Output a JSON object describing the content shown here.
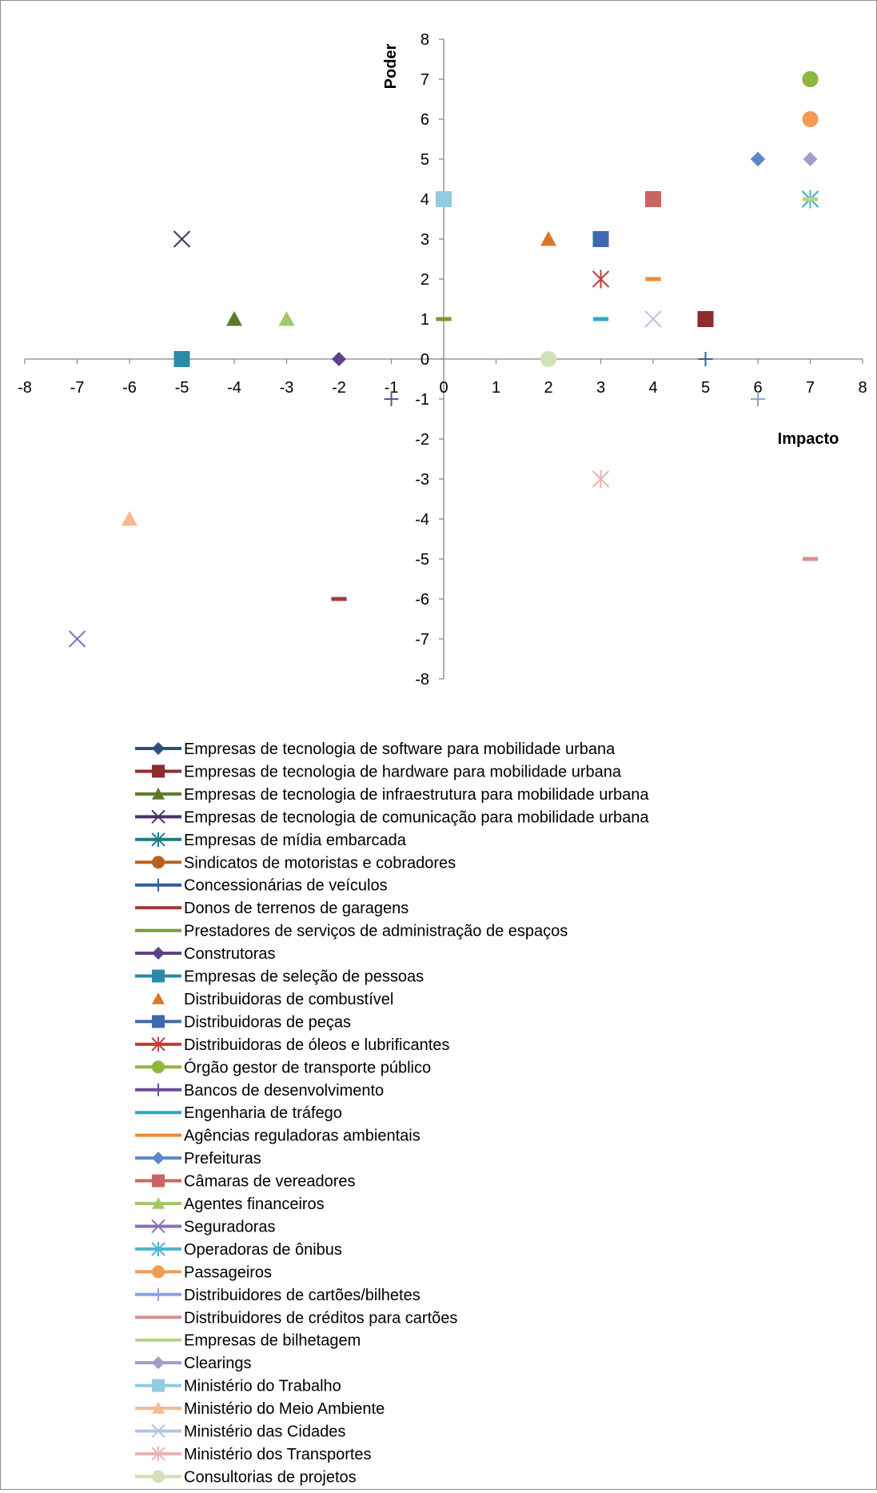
{
  "chart_data": {
    "type": "scatter",
    "title": "",
    "xlabel": "Impacto",
    "ylabel": "Poder",
    "xlim": [
      -8,
      8
    ],
    "ylim": [
      -8,
      8
    ],
    "x_ticks": [
      "-8",
      "-7",
      "-6",
      "-5",
      "-4",
      "-3",
      "-2",
      "-1",
      "0",
      "1",
      "2",
      "3",
      "4",
      "5",
      "6",
      "7",
      "8"
    ],
    "y_ticks": [
      "8",
      "7",
      "6",
      "5",
      "4",
      "3",
      "2",
      "1",
      "0",
      "-1",
      "-2",
      "-3",
      "-4",
      "-5",
      "-6",
      "-7",
      "-8"
    ],
    "grid": false,
    "legend_position": "bottom",
    "series": [
      {
        "name": "Empresas de tecnologia de software para mobilidade urbana",
        "marker": "diamond",
        "color": "#2e4f7c",
        "points": [
          [
            6,
            5
          ]
        ]
      },
      {
        "name": "Empresas de tecnologia de hardware para mobilidade urbana",
        "marker": "square",
        "color": "#8e2b2b",
        "points": [
          [
            5,
            1
          ]
        ]
      },
      {
        "name": "Empresas de tecnologia de infraestrutura para mobilidade urbana",
        "marker": "triangle",
        "color": "#5b7a2a",
        "points": [
          [
            -4,
            1
          ]
        ]
      },
      {
        "name": "Empresas de tecnologia de comunicação para mobilidade urbana",
        "marker": "x",
        "color": "#4a3068",
        "points": [
          [
            -5,
            3
          ]
        ]
      },
      {
        "name": "Empresas de mídia embarcada",
        "marker": "star",
        "color": "#1f7a85",
        "points": [
          [
            7,
            4
          ]
        ]
      },
      {
        "name": "Sindicatos de motoristas e cobradores",
        "marker": "circle",
        "color": "#b8621d",
        "points": [
          [
            7,
            7
          ]
        ]
      },
      {
        "name": "Concessionárias de veículos",
        "marker": "plus",
        "color": "#2e5fa0",
        "points": [
          [
            5,
            0
          ]
        ]
      },
      {
        "name": "Donos de terrenos de garagens",
        "marker": "dash",
        "color": "#a33a3a",
        "points": [
          [
            -2,
            -6
          ]
        ]
      },
      {
        "name": "Prestadores de serviços de administração de espaços",
        "marker": "dash",
        "color": "#7a9a3a",
        "points": [
          [
            0,
            1
          ],
          [
            7,
            4
          ]
        ]
      },
      {
        "name": "Construtoras",
        "marker": "diamond",
        "color": "#5e3f88",
        "points": [
          [
            -2,
            0
          ]
        ]
      },
      {
        "name": "Empresas de seleção de pessoas",
        "marker": "square",
        "color": "#2a8aa8",
        "points": [
          [
            -5,
            0
          ]
        ]
      },
      {
        "name": "Distribuidoras de combustível",
        "marker": "triangle",
        "color": "#d9782a",
        "points": [
          [
            2,
            3
          ]
        ],
        "no_line": true
      },
      {
        "name": "Distribuidoras de peças",
        "marker": "square",
        "color": "#3d6aae",
        "points": [
          [
            3,
            3
          ]
        ]
      },
      {
        "name": "Distribuidoras de óleos e lubrificantes",
        "marker": "star",
        "color": "#c03c3c",
        "points": [
          [
            3,
            2
          ]
        ]
      },
      {
        "name": "Órgão gestor de transporte público",
        "marker": "circle",
        "color": "#8cb83c",
        "points": [
          [
            7,
            7
          ]
        ]
      },
      {
        "name": "Bancos de desenvolvimento",
        "marker": "plus",
        "color": "#6e4a98",
        "points": [
          [
            -1,
            -1
          ]
        ]
      },
      {
        "name": "Engenharia de tráfego",
        "marker": "dash",
        "color": "#2fa8c0",
        "points": [
          [
            3,
            1
          ]
        ]
      },
      {
        "name": "Agências reguladoras ambientais",
        "marker": "dash",
        "color": "#ee8a30",
        "points": [
          [
            4,
            2
          ]
        ]
      },
      {
        "name": "Prefeituras",
        "marker": "diamond",
        "color": "#5b86c8",
        "points": [
          [
            6,
            5
          ]
        ]
      },
      {
        "name": "Câmaras de vereadores",
        "marker": "square",
        "color": "#cc6464",
        "points": [
          [
            4,
            4
          ]
        ]
      },
      {
        "name": "Agentes financeiros",
        "marker": "triangle",
        "color": "#a4c86a",
        "points": [
          [
            -3,
            1
          ]
        ]
      },
      {
        "name": "Seguradoras",
        "marker": "x",
        "color": "#8a70b8",
        "points": [
          [
            -7,
            -7
          ]
        ]
      },
      {
        "name": "Operadoras de ônibus",
        "marker": "star",
        "color": "#4ab4cc",
        "points": [
          [
            7,
            4
          ]
        ]
      },
      {
        "name": "Passageiros",
        "marker": "circle",
        "color": "#f59a52",
        "points": [
          [
            7,
            6
          ]
        ]
      },
      {
        "name": "Distribuidores de cartões/bilhetes",
        "marker": "plus",
        "color": "#8aa4d8",
        "points": [
          [
            6,
            -1
          ]
        ]
      },
      {
        "name": "Distribuidores de créditos para cartões",
        "marker": "dash",
        "color": "#d89090",
        "points": [
          [
            7,
            -5
          ]
        ]
      },
      {
        "name": "Empresas de bilhetagem",
        "marker": "dash",
        "color": "#b8d48c",
        "points": [
          [
            7,
            4
          ]
        ]
      },
      {
        "name": "Clearings",
        "marker": "diamond",
        "color": "#a69ac8",
        "points": [
          [
            7,
            5
          ]
        ]
      },
      {
        "name": "Ministério do Trabalho",
        "marker": "square",
        "color": "#92cce0",
        "points": [
          [
            0,
            4
          ]
        ]
      },
      {
        "name": "Ministério do Meio Ambiente",
        "marker": "triangle",
        "color": "#f8b890",
        "points": [
          [
            -6,
            -4
          ]
        ]
      },
      {
        "name": "Ministério das Cidades",
        "marker": "x",
        "color": "#b4c4e8",
        "points": [
          [
            4,
            1
          ]
        ]
      },
      {
        "name": "Ministério dos Transportes",
        "marker": "star",
        "color": "#e8b4b4",
        "points": [
          [
            3,
            -3
          ]
        ]
      },
      {
        "name": "Consultorias de projetos",
        "marker": "circle",
        "color": "#d0e0b8",
        "points": [
          [
            2,
            0
          ]
        ]
      }
    ]
  }
}
